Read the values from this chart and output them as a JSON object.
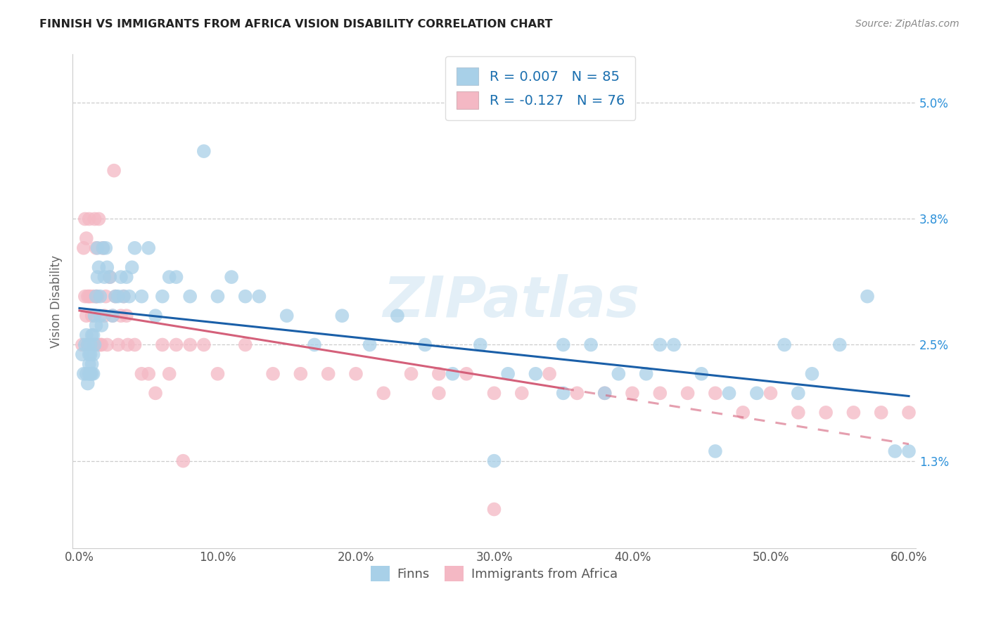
{
  "title": "FINNISH VS IMMIGRANTS FROM AFRICA VISION DISABILITY CORRELATION CHART",
  "source": "Source: ZipAtlas.com",
  "ylabel": "Vision Disability",
  "watermark": "ZIPatlas",
  "legend_line1": "R = 0.007   N = 85",
  "legend_line2": "R = -0.127   N = 76",
  "finns_color": "#a8d0e8",
  "immigrants_color": "#f4b8c4",
  "finns_line_color": "#1a5fa8",
  "immigrants_line_color": "#d4607a",
  "xlim": [
    -0.005,
    0.605
  ],
  "ylim": [
    0.004,
    0.055
  ],
  "xticks": [
    0.0,
    0.1,
    0.2,
    0.3,
    0.4,
    0.5,
    0.6
  ],
  "xtick_labels": [
    "0.0%",
    "10.0%",
    "20.0%",
    "30.0%",
    "40.0%",
    "50.0%",
    "60.0%"
  ],
  "ytick_labels": [
    "1.3%",
    "2.5%",
    "3.8%",
    "5.0%"
  ],
  "ytick_vals": [
    0.013,
    0.025,
    0.038,
    0.05
  ],
  "finns_x": [
    0.002,
    0.003,
    0.004,
    0.005,
    0.005,
    0.006,
    0.006,
    0.007,
    0.007,
    0.007,
    0.008,
    0.008,
    0.008,
    0.009,
    0.009,
    0.009,
    0.01,
    0.01,
    0.01,
    0.011,
    0.011,
    0.012,
    0.012,
    0.013,
    0.013,
    0.014,
    0.015,
    0.015,
    0.016,
    0.017,
    0.018,
    0.019,
    0.02,
    0.022,
    0.024,
    0.026,
    0.028,
    0.03,
    0.032,
    0.034,
    0.036,
    0.038,
    0.04,
    0.045,
    0.05,
    0.055,
    0.06,
    0.065,
    0.07,
    0.08,
    0.09,
    0.1,
    0.11,
    0.12,
    0.13,
    0.15,
    0.17,
    0.19,
    0.21,
    0.23,
    0.25,
    0.27,
    0.29,
    0.31,
    0.33,
    0.35,
    0.37,
    0.39,
    0.41,
    0.43,
    0.45,
    0.47,
    0.49,
    0.51,
    0.53,
    0.55,
    0.57,
    0.59,
    0.6,
    0.42,
    0.35,
    0.3,
    0.38,
    0.46,
    0.52
  ],
  "finns_y": [
    0.024,
    0.022,
    0.025,
    0.022,
    0.026,
    0.021,
    0.025,
    0.023,
    0.024,
    0.022,
    0.025,
    0.022,
    0.024,
    0.026,
    0.023,
    0.022,
    0.026,
    0.024,
    0.022,
    0.028,
    0.025,
    0.03,
    0.027,
    0.032,
    0.035,
    0.033,
    0.03,
    0.028,
    0.027,
    0.035,
    0.032,
    0.035,
    0.033,
    0.032,
    0.028,
    0.03,
    0.03,
    0.032,
    0.03,
    0.032,
    0.03,
    0.033,
    0.035,
    0.03,
    0.035,
    0.028,
    0.03,
    0.032,
    0.032,
    0.03,
    0.045,
    0.03,
    0.032,
    0.03,
    0.03,
    0.028,
    0.025,
    0.028,
    0.025,
    0.028,
    0.025,
    0.022,
    0.025,
    0.022,
    0.022,
    0.025,
    0.025,
    0.022,
    0.022,
    0.025,
    0.022,
    0.02,
    0.02,
    0.025,
    0.022,
    0.025,
    0.03,
    0.014,
    0.014,
    0.025,
    0.02,
    0.013,
    0.02,
    0.014,
    0.02
  ],
  "immigrants_x": [
    0.002,
    0.003,
    0.004,
    0.004,
    0.005,
    0.005,
    0.006,
    0.006,
    0.007,
    0.007,
    0.008,
    0.008,
    0.009,
    0.009,
    0.01,
    0.01,
    0.011,
    0.011,
    0.012,
    0.012,
    0.013,
    0.013,
    0.014,
    0.015,
    0.016,
    0.017,
    0.018,
    0.019,
    0.02,
    0.022,
    0.024,
    0.026,
    0.028,
    0.03,
    0.032,
    0.034,
    0.04,
    0.05,
    0.06,
    0.07,
    0.08,
    0.09,
    0.1,
    0.12,
    0.14,
    0.16,
    0.18,
    0.2,
    0.22,
    0.24,
    0.26,
    0.28,
    0.3,
    0.32,
    0.34,
    0.36,
    0.38,
    0.4,
    0.42,
    0.44,
    0.46,
    0.48,
    0.5,
    0.52,
    0.54,
    0.56,
    0.58,
    0.6,
    0.025,
    0.035,
    0.045,
    0.055,
    0.065,
    0.075,
    0.26,
    0.3
  ],
  "immigrants_y": [
    0.025,
    0.035,
    0.03,
    0.038,
    0.028,
    0.036,
    0.03,
    0.025,
    0.03,
    0.038,
    0.025,
    0.03,
    0.025,
    0.028,
    0.025,
    0.03,
    0.025,
    0.038,
    0.03,
    0.035,
    0.025,
    0.03,
    0.038,
    0.025,
    0.025,
    0.035,
    0.028,
    0.03,
    0.025,
    0.032,
    0.028,
    0.03,
    0.025,
    0.028,
    0.03,
    0.028,
    0.025,
    0.022,
    0.025,
    0.025,
    0.025,
    0.025,
    0.022,
    0.025,
    0.022,
    0.022,
    0.022,
    0.022,
    0.02,
    0.022,
    0.02,
    0.022,
    0.02,
    0.02,
    0.022,
    0.02,
    0.02,
    0.02,
    0.02,
    0.02,
    0.02,
    0.018,
    0.02,
    0.018,
    0.018,
    0.018,
    0.018,
    0.018,
    0.043,
    0.025,
    0.022,
    0.02,
    0.022,
    0.013,
    0.022,
    0.008
  ],
  "finns_R": 0.007,
  "immigrants_R": -0.127,
  "finns_N": 85,
  "immigrants_N": 76
}
